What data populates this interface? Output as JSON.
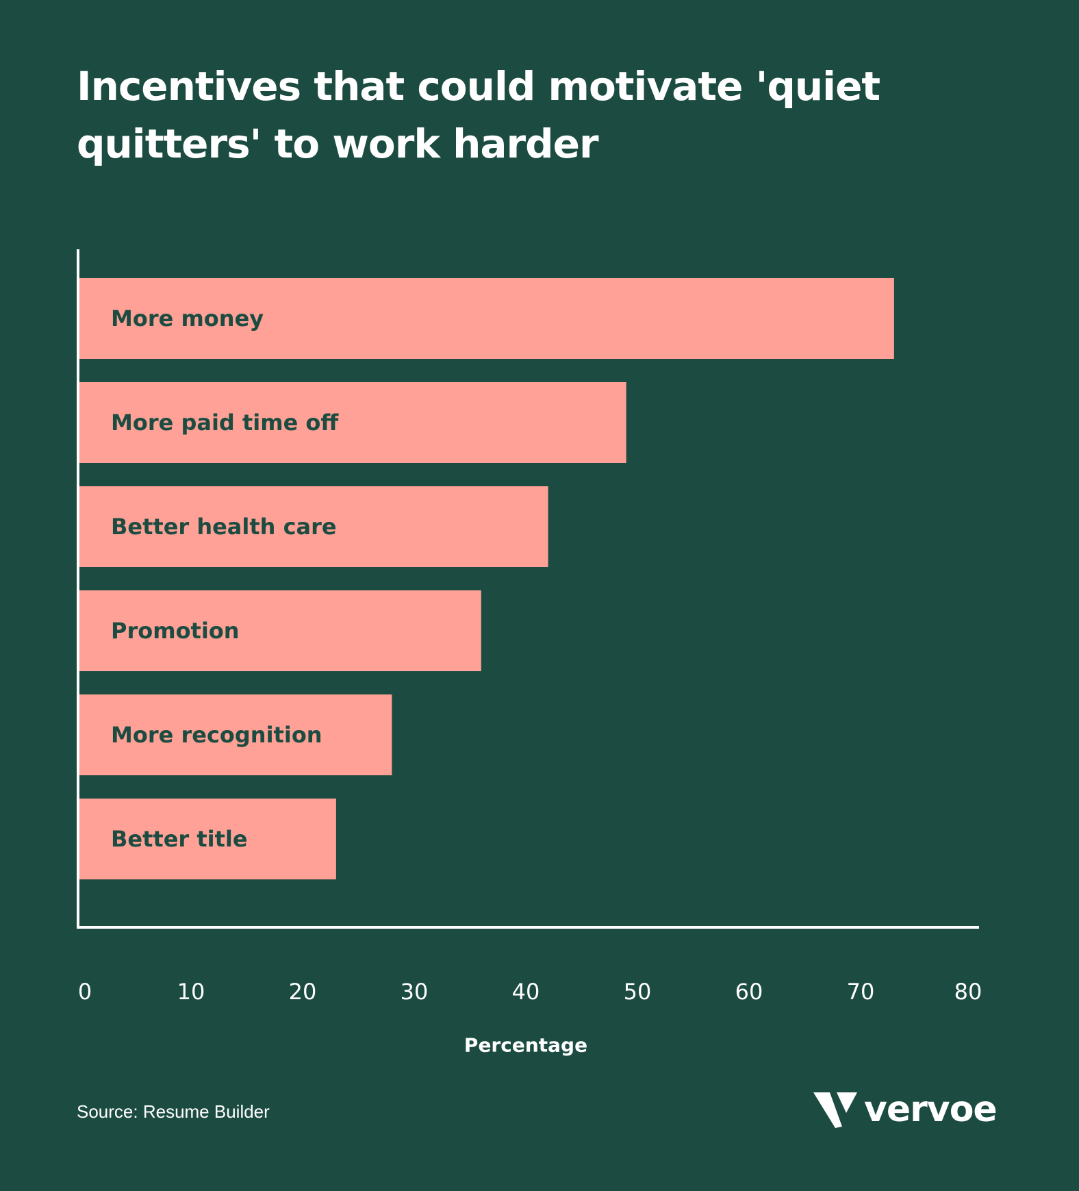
{
  "header": {
    "title": "Incentives that could motivate 'quiet quitters' to work harder"
  },
  "colors": {
    "background": "#1c4c41",
    "bar": "#ffa196",
    "bar_label": "#1c4c41",
    "axis": "#ffffff",
    "text": "#ffffff"
  },
  "chart_data": {
    "type": "bar",
    "orientation": "horizontal",
    "title": "Incentives that could motivate 'quiet quitters' to work harder",
    "categories": [
      "More money",
      "More paid time off",
      "Better health care",
      "Promotion",
      "More recognition",
      "Better title"
    ],
    "values": [
      73,
      49,
      42,
      36,
      28,
      23
    ],
    "xlabel": "Percentage",
    "ylabel": "",
    "xlim": [
      0,
      80
    ],
    "x_ticks": [
      "0",
      "10",
      "20",
      "30",
      "40",
      "50",
      "60",
      "70",
      "80"
    ],
    "grid": false,
    "legend": "none",
    "category_labels_position": "inside-bar"
  },
  "footer": {
    "source": "Source: Resume Builder",
    "logo_text": "vervoe",
    "logo_icon": "vervoe-v-logo-icon"
  }
}
